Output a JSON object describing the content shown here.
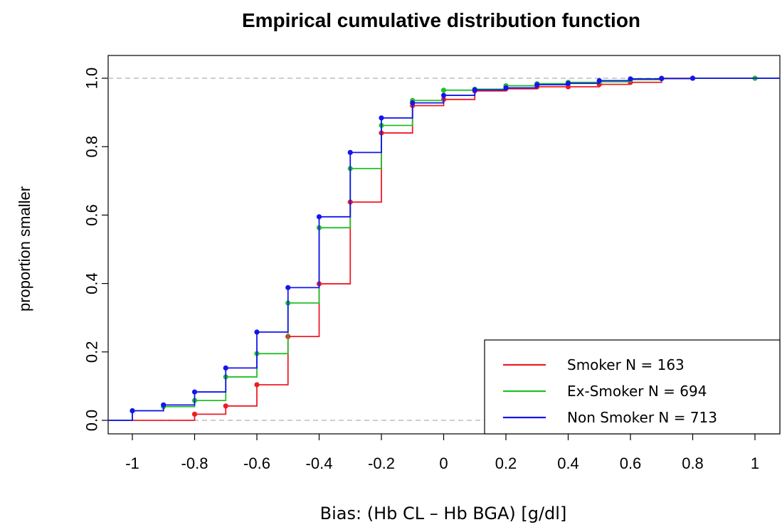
{
  "chart_data": {
    "type": "line",
    "title": "Empirical cumulative distribution function",
    "xlabel": "Bias: (Hb CL – Hb BGA) [g/dl]",
    "ylabel": "proportion smaller",
    "xlim": [
      -1.08,
      1.08
    ],
    "ylim": [
      -0.04,
      1.04
    ],
    "xticks": [
      -1,
      -0.8,
      -0.6,
      -0.4,
      -0.2,
      0,
      0.2,
      0.4,
      0.6,
      0.8,
      1
    ],
    "xtick_labels": [
      "-1",
      "-0.8",
      "-0.6",
      "-0.4",
      "-0.2",
      "0",
      "0.2",
      "0.4",
      "0.6",
      "0.8",
      "1"
    ],
    "yticks": [
      0,
      0.2,
      0.4,
      0.6,
      0.8,
      1
    ],
    "ytick_labels": [
      "0.0",
      "0.2",
      "0.4",
      "0.6",
      "0.8",
      "1.0"
    ],
    "reference_lines": [
      0,
      1
    ],
    "grid": false,
    "legend_position": "bottom-right",
    "series": [
      {
        "name": "Smoker N = 163",
        "color": "#ee1c25",
        "x": [
          -0.8,
          -0.7,
          -0.6,
          -0.5,
          -0.4,
          -0.3,
          -0.2,
          -0.1,
          0,
          0.1,
          0.2,
          0.3,
          0.4,
          0.5,
          0.6,
          0.7,
          0.8,
          1.0
        ],
        "y": [
          0.018,
          0.042,
          0.104,
          0.245,
          0.399,
          0.638,
          0.84,
          0.92,
          0.938,
          0.963,
          0.969,
          0.975,
          0.975,
          0.982,
          0.988,
          1.0,
          1.0,
          1.0
        ]
      },
      {
        "name": "Ex-Smoker N = 694",
        "color": "#22c02a",
        "x": [
          -1.0,
          -0.9,
          -0.8,
          -0.7,
          -0.6,
          -0.5,
          -0.4,
          -0.3,
          -0.2,
          -0.1,
          0,
          0.1,
          0.2,
          0.3,
          0.4,
          0.5,
          0.6,
          0.7,
          0.8,
          1.0
        ],
        "y": [
          0.028,
          0.04,
          0.058,
          0.127,
          0.195,
          0.343,
          0.563,
          0.736,
          0.862,
          0.935,
          0.965,
          0.968,
          0.978,
          0.984,
          0.988,
          0.99,
          0.996,
          0.999,
          1.0,
          1.0
        ]
      },
      {
        "name": "Non Smoker N = 713",
        "color": "#1515ee",
        "x": [
          -1.0,
          -0.9,
          -0.8,
          -0.7,
          -0.6,
          -0.5,
          -0.4,
          -0.3,
          -0.2,
          -0.1,
          0,
          0.1,
          0.2,
          0.3,
          0.4,
          0.5,
          0.6,
          0.7,
          0.8
        ],
        "y": [
          0.028,
          0.045,
          0.083,
          0.153,
          0.258,
          0.388,
          0.595,
          0.783,
          0.884,
          0.928,
          0.95,
          0.966,
          0.972,
          0.981,
          0.985,
          0.993,
          0.998,
          0.999,
          1.0
        ]
      }
    ]
  }
}
